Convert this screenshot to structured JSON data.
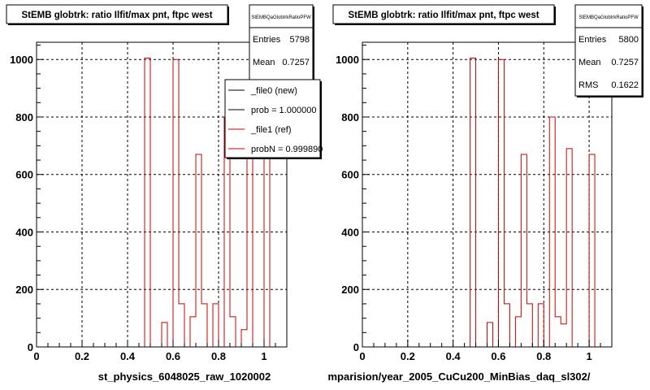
{
  "chart_data": [
    {
      "type": "bar",
      "title": "StEMB globtrk: ratio Ilfit/max pnt, ftpc west",
      "xlabel": "st_physics_6048025_raw_1020002",
      "ylabel": "",
      "xlim": [
        0,
        1.1
      ],
      "ylim": [
        0,
        1060
      ],
      "x_ticks": [
        "0",
        "0.2",
        "0.4",
        "0.6",
        "0.8",
        "1"
      ],
      "y_ticks": [
        "0",
        "200",
        "400",
        "600",
        "800",
        "1000"
      ],
      "grid": true,
      "stats": {
        "name": "StEMBQaGlobtrkRatioPFW",
        "entries_label": "Entries",
        "entries": "5798",
        "mean_label": "Mean",
        "mean": "0.7257"
      },
      "legend": {
        "placement": "top-right",
        "entries": [
          {
            "label": "_file0 (new)",
            "color": "#000000"
          },
          {
            "label": "prob = 1.000000",
            "color": "#000000"
          },
          {
            "label": "_file1 (ref)",
            "color": "#cc0000"
          },
          {
            "label": "probN = 0.999890",
            "color": "#cc0000"
          }
        ]
      },
      "series": [
        {
          "color": "#cc0000",
          "bin_width": 0.025,
          "x": [
            0.0,
            0.025,
            0.05,
            0.075,
            0.1,
            0.125,
            0.15,
            0.175,
            0.2,
            0.225,
            0.25,
            0.275,
            0.3,
            0.325,
            0.35,
            0.375,
            0.4,
            0.425,
            0.45,
            0.475,
            0.5,
            0.525,
            0.55,
            0.575,
            0.6,
            0.625,
            0.65,
            0.675,
            0.7,
            0.725,
            0.75,
            0.775,
            0.8,
            0.825,
            0.85,
            0.875,
            0.9,
            0.925,
            0.95,
            0.975,
            1.0,
            1.025,
            1.05,
            1.075
          ],
          "values": [
            0,
            0,
            0,
            0,
            0,
            0,
            0,
            0,
            0,
            0,
            0,
            0,
            0,
            0,
            0,
            0,
            0,
            0,
            0,
            1005,
            0,
            0,
            85,
            0,
            1000,
            150,
            0,
            105,
            670,
            150,
            0,
            150,
            0,
            800,
            105,
            0,
            60,
            690,
            0,
            0,
            670,
            0,
            0,
            0
          ]
        }
      ]
    },
    {
      "type": "bar",
      "title": "StEMB globtrk: ratio Ilfit/max pnt, ftpc west",
      "xlabel": "mparision/year_2005_CuCu200_MinBias_daq_sl302/",
      "ylabel": "",
      "xlim": [
        0,
        1.1
      ],
      "ylim": [
        0,
        1060
      ],
      "x_ticks": [
        "0",
        "0.2",
        "0.4",
        "0.6",
        "0.8",
        "1"
      ],
      "y_ticks": [
        "0",
        "200",
        "400",
        "600",
        "800",
        "1000"
      ],
      "grid": true,
      "stats": {
        "name": "StEMBQaGlobtrkRatioPFW",
        "entries_label": "Entries",
        "entries": "5800",
        "mean_label": "Mean",
        "mean": "0.7257",
        "rms_label": "RMS",
        "rms": "0.1622"
      },
      "series": [
        {
          "color": "#cc0000",
          "bin_width": 0.025,
          "x": [
            0.475,
            0.5,
            0.525,
            0.55,
            0.575,
            0.6,
            0.625,
            0.65,
            0.675,
            0.7,
            0.725,
            0.75,
            0.775,
            0.8,
            0.825,
            0.85,
            0.875,
            0.9,
            0.925,
            0.95,
            0.975,
            1.0
          ],
          "values": [
            1005,
            0,
            0,
            85,
            0,
            1000,
            150,
            0,
            105,
            670,
            150,
            0,
            150,
            0,
            800,
            105,
            80,
            690,
            0,
            0,
            0,
            670
          ]
        }
      ]
    }
  ]
}
